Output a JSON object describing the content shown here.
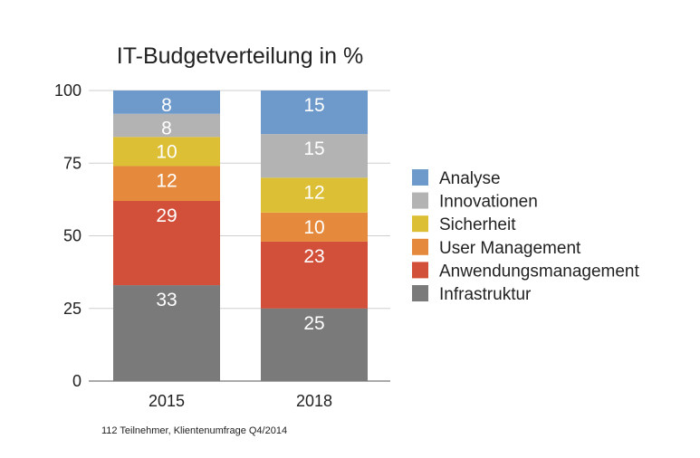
{
  "chart_data": {
    "type": "bar",
    "stacked": true,
    "title": "IT-Budgetverteilung in %",
    "categories": [
      "2015",
      "2018"
    ],
    "ylim": [
      0,
      100
    ],
    "yticks": [
      0,
      25,
      50,
      75,
      100
    ],
    "grid": true,
    "legend_position": "right",
    "series": [
      {
        "name": "Infrastruktur",
        "color": "#7a7a7a",
        "values": [
          33,
          25
        ]
      },
      {
        "name": "Anwendungsmanagement",
        "color": "#d24f39",
        "values": [
          29,
          23
        ]
      },
      {
        "name": "User Management",
        "color": "#e58a3c",
        "values": [
          12,
          10
        ]
      },
      {
        "name": "Sicherheit",
        "color": "#ddbf35",
        "values": [
          10,
          12
        ]
      },
      {
        "name": "Innovationen",
        "color": "#b3b3b3",
        "values": [
          8,
          15
        ]
      },
      {
        "name": "Analyse",
        "color": "#6e9acb",
        "values": [
          8,
          15
        ]
      }
    ]
  },
  "footnote": "112 Teilnehmer, Klientenumfrage Q4/2014"
}
